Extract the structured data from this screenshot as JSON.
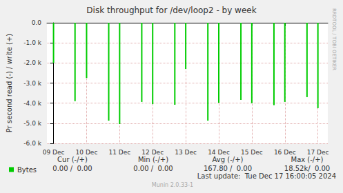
{
  "chart_data": {
    "type": "bar",
    "title": "Disk throughput for /dev/loop2 - by week",
    "y_label": "Pr second read (-) / write (+)",
    "x": [
      0.0,
      0.65,
      1.0,
      1.67,
      2.0,
      2.67,
      3.0,
      3.67,
      4.0,
      4.67,
      5.0,
      5.67,
      6.0,
      6.67,
      7.0,
      7.67,
      8.0
    ],
    "series": [
      {
        "name": "Bytes",
        "color": "#00cc00",
        "values": [
          -2000,
          -3900,
          -2750,
          -4870,
          -5040,
          -3940,
          -4050,
          -4080,
          -2300,
          -4870,
          -3980,
          -3840,
          -4000,
          -4100,
          -3940,
          -3700,
          -4250
        ]
      }
    ],
    "xlim": [
      -0.2,
      8.3
    ],
    "xticks": [
      {
        "value": 0,
        "label": "09 Dec"
      },
      {
        "value": 1,
        "label": "10 Dec"
      },
      {
        "value": 2,
        "label": "11 Dec"
      },
      {
        "value": 3,
        "label": "12 Dec"
      },
      {
        "value": 4,
        "label": "13 Dec"
      },
      {
        "value": 5,
        "label": "14 Dec"
      },
      {
        "value": 6,
        "label": "15 Dec"
      },
      {
        "value": 7,
        "label": "16 Dec"
      },
      {
        "value": 8,
        "label": "17 Dec"
      }
    ],
    "ylim": [
      -6000,
      0
    ],
    "yticks": [
      {
        "value": -6000,
        "label": "-6.0 k"
      },
      {
        "value": -5000,
        "label": "-5.0 k"
      },
      {
        "value": -4000,
        "label": "-4.0 k"
      },
      {
        "value": -3000,
        "label": "-3.0 k"
      },
      {
        "value": -2000,
        "label": "-2.0 k"
      },
      {
        "value": -1000,
        "label": "-1.0 k"
      },
      {
        "value": 0,
        "label": "0.0"
      }
    ],
    "grid": true,
    "legend": "bottom-left",
    "annotations": {
      "stats_header": [
        "Cur (-/+)",
        "Min (-/+)",
        "Avg (-/+)",
        "Max (-/+)"
      ],
      "stats_row": [
        "0.00 /  0.00",
        "0.00 /  0.00",
        "167.80 /  0.00",
        "18.52k/  0.00"
      ],
      "last_update": "Last update:  Tue Dec 17 16:00:05 2024",
      "footer": "Munin 2.0.33-1",
      "side_text": "RRDTOOL / TOBI OETIKER"
    }
  }
}
